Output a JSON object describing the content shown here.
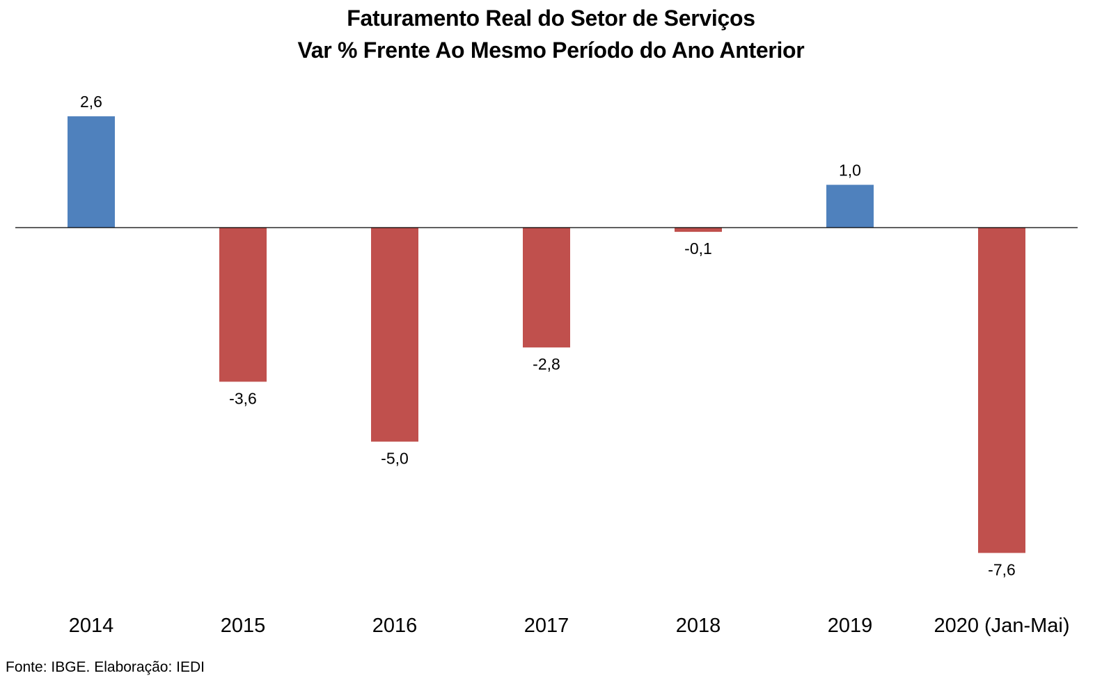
{
  "chart_data": {
    "type": "bar",
    "title": "Faturamento Real do Setor de Serviços",
    "subtitle": "Var % Frente Ao Mesmo Período do Ano Anterior",
    "categories": [
      "2014",
      "2015",
      "2016",
      "2017",
      "2018",
      "2019",
      "2020 (Jan-Mai)"
    ],
    "values": [
      2.6,
      -3.6,
      -5.0,
      -2.8,
      -0.1,
      1.0,
      -7.6
    ],
    "data_labels": [
      "2,6",
      "-3,6",
      "-5,0",
      "-2,8",
      "-0,1",
      "1,0",
      "-7,6"
    ],
    "xlabel": "",
    "ylabel": "",
    "ylim": [
      -8.6,
      3.0
    ],
    "grid": false,
    "legend": "none",
    "colors": {
      "positive": "#4F81BD",
      "negative": "#C0504D",
      "axis": "#000000"
    }
  },
  "source_note": "Fonte: IBGE. Elaboração: IEDI"
}
